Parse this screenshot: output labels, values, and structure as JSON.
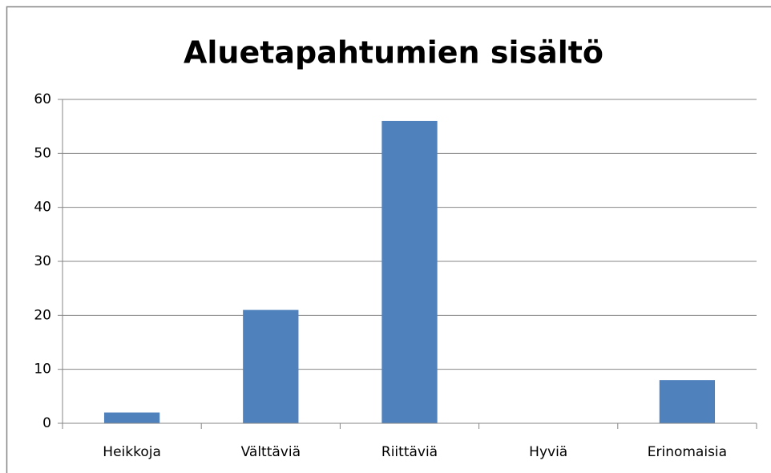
{
  "chart_data": {
    "type": "bar",
    "title": "Aluetapahtumien sisältö",
    "categories": [
      "Heikkoja",
      "Välttäviä",
      "Riittäviä",
      "Hyviä",
      "Erinomaisia"
    ],
    "values": [
      2,
      21,
      56,
      0,
      8
    ],
    "color": "#4f81bd",
    "ylim": [
      0,
      60
    ],
    "yticks": [
      0,
      10,
      20,
      30,
      40,
      50,
      60
    ],
    "grid": true
  }
}
